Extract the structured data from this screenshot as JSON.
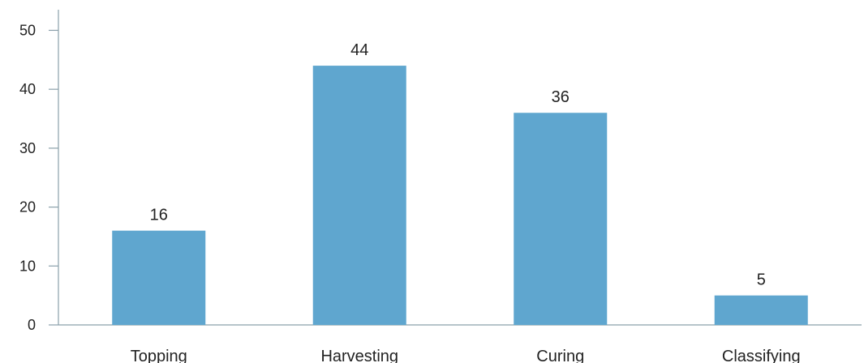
{
  "chart_data": {
    "type": "bar",
    "categories": [
      "Topping",
      "Harvesting",
      "Curing",
      "Classifying"
    ],
    "values": [
      16,
      44,
      36,
      5
    ],
    "data_labels": [
      "16",
      "44",
      "36",
      "5"
    ],
    "yticks": [
      0,
      10,
      20,
      30,
      40,
      50
    ],
    "ytick_labels": [
      "0",
      "10",
      "20",
      "30",
      "40",
      "50"
    ],
    "ylim": [
      0,
      53.5
    ],
    "title": "",
    "xlabel": "",
    "ylabel": "",
    "grid": false,
    "colors": {
      "bar": "#5fa6cf",
      "axis": "#8aa0aa"
    }
  }
}
